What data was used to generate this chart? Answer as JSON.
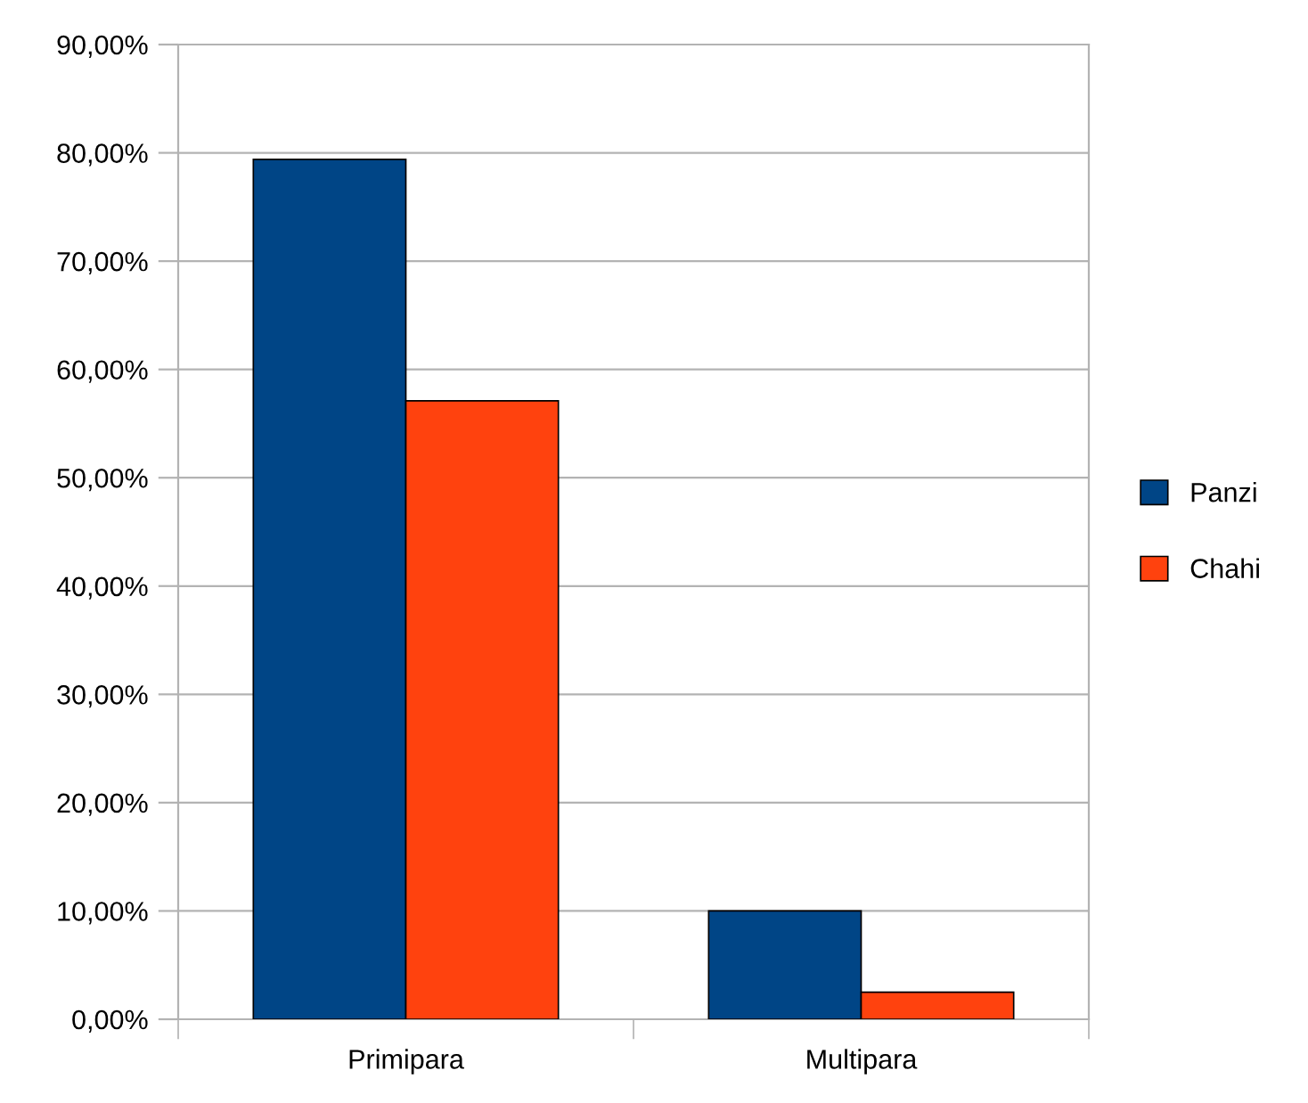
{
  "chart_data": {
    "type": "bar",
    "categories": [
      "Primipara",
      "Multipara"
    ],
    "series": [
      {
        "name": "Panzi",
        "color": "#004586",
        "values": [
          79.4,
          10.0
        ]
      },
      {
        "name": "Chahi",
        "color": "#ff420e",
        "values": [
          57.1,
          2.5
        ]
      }
    ],
    "ylim": [
      0,
      90
    ],
    "yticks": [
      {
        "value": 0,
        "label": "0,00%"
      },
      {
        "value": 10,
        "label": "10,00%"
      },
      {
        "value": 20,
        "label": "20,00%"
      },
      {
        "value": 30,
        "label": "30,00%"
      },
      {
        "value": 40,
        "label": "40,00%"
      },
      {
        "value": 50,
        "label": "50,00%"
      },
      {
        "value": 60,
        "label": "60,00%"
      },
      {
        "value": 70,
        "label": "70,00%"
      },
      {
        "value": 80,
        "label": "80,00%"
      },
      {
        "value": 90,
        "label": "90,00%"
      }
    ],
    "grid": "y",
    "legend": "right"
  }
}
